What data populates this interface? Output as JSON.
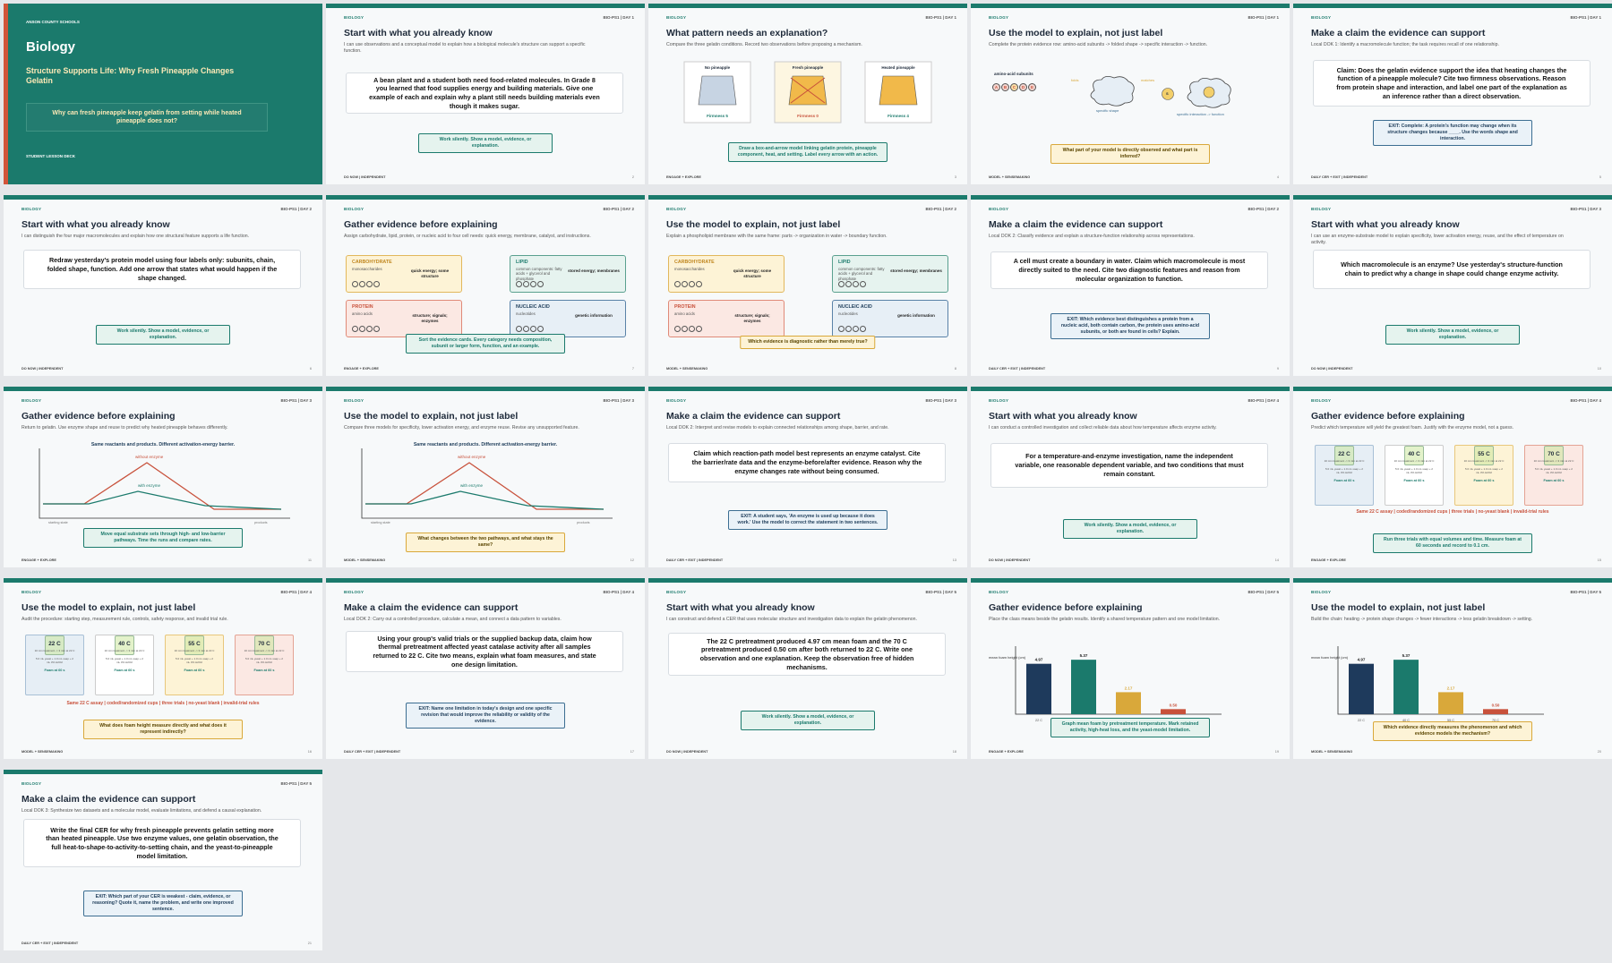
{
  "cover": {
    "school": "ANSON COUNTY SCHOOLS",
    "subject": "Biology",
    "unit": "Structure Supports Life: Why Fresh Pineapple Changes Gelatin",
    "question": "Why can fresh pineapple keep gelatin from setting while heated pineapple does not?",
    "deck": "STUDENT LESSON DECK"
  },
  "subject_label": "BIOLOGY",
  "slides": [
    {
      "code": "BIO-PS1 | DAY 1",
      "title": "Start with what you already know",
      "sub": "I can use observations and a conceptual model to explain how a biological molecule's structure can support a specific function.",
      "card": "A bean plant and a student both need food-related molecules. In Grade 8 you learned that food supplies energy and building materials. Give one example of each and explain why a plant still needs building materials even though it makes sugar.",
      "pill": "Work silently. Show a model, evidence, or explanation.",
      "foot": "DO NOW | INDEPENDENT",
      "pg": "2",
      "num": "Slide 2"
    },
    {
      "code": "BIO-PS1 | DAY 1",
      "title": "What pattern needs an explanation?",
      "sub": "Compare the three gelatin conditions. Record two observations before proposing a mechanism.",
      "pill": "Draw a box-and-arrow model linking gelatin protein, pineapple component, heat, and setting. Label every arrow with an action.",
      "foot": "ENGAGE + EXPLORE",
      "pg": "3",
      "num": "Slide 3",
      "jars": [
        {
          "label": "No pineapple",
          "firm": "Firmness 5"
        },
        {
          "label": "Fresh pineapple",
          "firm": "Firmness 0"
        },
        {
          "label": "Heated pineapple",
          "firm": "Firmness 4"
        }
      ]
    },
    {
      "code": "BIO-PS1 | DAY 1",
      "title": "Use the model to explain, not just label",
      "sub": "Complete the protein evidence row: amino-acid subunits -> folded shape -> specific interaction -> function.",
      "pill": "What part of your model is directly observed and what part is inferred?",
      "foot": "MODEL + SENSEMAKING",
      "pg": "4",
      "num": "Slide 4",
      "chain": {
        "subunits": "amino-acid subunits",
        "beads": [
          "A",
          "B",
          "C",
          "D",
          "E"
        ],
        "folds": "folds",
        "shape": "specific shape",
        "matches": "matches",
        "s": "S",
        "interaction": "specific interaction -> function"
      }
    },
    {
      "code": "BIO-PS1 | DAY 1",
      "title": "Make a claim the evidence can support",
      "sub": "Local DOK 1: Identify a macromolecule function; the task requires recall of one relationship.",
      "card": "Claim: Does the gelatin evidence support the idea that heating changes the function of a pineapple molecule? Cite two firmness observations. Reason from protein shape and interaction, and label one part of the explanation as an inference rather than a direct observation.",
      "pill": "EXIT: Complete: A protein's function may change when its structure changes because ____. Use the words shape and interaction.",
      "foot": "DAILY CER + EXIT | INDEPENDENT",
      "pg": "5",
      "num": "Slide 5"
    },
    {
      "code": "BIO-PS1 | DAY 2",
      "title": "Start with what you already know",
      "sub": "I can distinguish the four major macromolecules and explain how one structural feature supports a life function.",
      "card": "Redraw yesterday's protein model using four labels only: subunits, chain, folded shape, function. Add one arrow that states what would happen if the shape changed.",
      "pill": "Work silently. Show a model, evidence, or explanation.",
      "foot": "DO NOW | INDEPENDENT",
      "pg": "6",
      "num": "Slide 6"
    },
    {
      "code": "BIO-PS1 | DAY 2",
      "title": "Gather evidence before explaining",
      "sub": "Assign carbohydrate, lipid, protein, or nucleic acid to four cell needs: quick energy, membrane, catalyst, and instructions.",
      "pill": "Sort the evidence cards. Every category needs composition, subunit or larger form, function, and an example.",
      "foot": "ENGAGE + EXPLORE",
      "pg": "7",
      "num": "Slide 7"
    },
    {
      "code": "BIO-PS1 | DAY 2",
      "title": "Use the model to explain, not just label",
      "sub": "Explain a phospholipid membrane with the same frame: parts -> organization in water -> boundary function.",
      "pill": "Which evidence is diagnostic rather than merely true?",
      "foot": "MODEL + SENSEMAKING",
      "pg": "8",
      "num": "Slide 8"
    },
    {
      "code": "BIO-PS1 | DAY 2",
      "title": "Make a claim the evidence can support",
      "sub": "Local DOK 2: Classify evidence and explain a structure-function relationship across representations.",
      "card": "A cell must create a boundary in water. Claim which macromolecule is most directly suited to the need. Cite two diagnostic features and reason from molecular organization to function.",
      "pill": "EXIT: Which evidence best distinguishes a protein from a nucleic acid, both contain carbon, the protein uses amino-acid subunits, or both are found in cells? Explain.",
      "foot": "DAILY CER + EXIT | INDEPENDENT",
      "pg": "9",
      "num": "Slide 9"
    },
    {
      "code": "BIO-PS1 | DAY 3",
      "title": "Start with what you already know",
      "sub": "I can use an enzyme-substrate model to explain specificity, lower activation energy, reuse, and the effect of temperature on activity.",
      "card": "Which macromolecule is an enzyme? Use yesterday's structure-function chain to predict why a change in shape could change enzyme activity.",
      "pill": "Work silently. Show a model, evidence, or explanation.",
      "foot": "DO NOW | INDEPENDENT",
      "pg": "10",
      "num": "Slide 10"
    },
    {
      "code": "BIO-PS1 | DAY 3",
      "title": "Gather evidence before explaining",
      "sub": "Return to gelatin. Use enzyme shape and reuse to predict why heated pineapple behaves differently.",
      "pill": "Move equal substrate sets through high- and low-barrier pathways. Time the runs and compare rates.",
      "foot": "ENGAGE + EXPLORE",
      "pg": "11",
      "num": "Slide 11"
    },
    {
      "code": "BIO-PS1 | DAY 3",
      "title": "Use the model to explain, not just label",
      "sub": "Compare three models for specificity, lower activation energy, and enzyme reuse. Revise any unsupported feature.",
      "pill": "What changes between the two pathways, and what stays the same?",
      "foot": "MODEL + SENSEMAKING",
      "pg": "12",
      "num": "Slide 12"
    },
    {
      "code": "BIO-PS1 | DAY 3",
      "title": "Make a claim the evidence can support",
      "sub": "Local DOK 2: Interpret and revise models to explain connected relationships among shape, barrier, and rate.",
      "card": "Claim which reaction-path model best represents an enzyme catalyst. Cite the barrier/rate data and the enzyme-before/after evidence. Reason why the enzyme changes rate without being consumed.",
      "pill": "EXIT: A student says, 'An enzyme is used up because it does work.' Use the model to correct the statement in two sentences.",
      "foot": "DAILY CER + EXIT | INDEPENDENT",
      "pg": "13",
      "num": "Slide 13"
    },
    {
      "code": "BIO-PS1 | DAY 4",
      "title": "Start with what you already know",
      "sub": "I can conduct a controlled investigation and collect reliable data about how temperature affects enzyme activity.",
      "card": "For a temperature-and-enzyme investigation, name the independent variable, one reasonable dependent variable, and two conditions that must remain constant.",
      "pill": "Work silently. Show a model, evidence, or explanation.",
      "foot": "DO NOW | INDEPENDENT",
      "pg": "14",
      "num": "Slide 14"
    },
    {
      "code": "BIO-PS1 | DAY 4",
      "title": "Gather evidence before explaining",
      "sub": "Predict which temperature will yield the greatest foam. Justify with the enzyme model, not a guess.",
      "red": "Same 22 C assay | coded/randomized cups | three trials | no-yeast blank | invalid-trial rules",
      "pill": "Run three trials with equal volumes and time. Measure foam at 60 seconds and record to 0.1 cm.",
      "foot": "ENGAGE + EXPLORE",
      "pg": "15",
      "num": "Slide 15"
    },
    {
      "code": "BIO-PS1 | DAY 4",
      "title": "Use the model to explain, not just label",
      "sub": "Audit the procedure: starting step, measurement rule, controls, safety response, and invalid trial rule.",
      "red": "Same 22 C assay | coded/randomized cups | three trials | no-yeast blank | invalid-trial rules",
      "pill": "What does foam height measure directly and what does it represent indirectly?",
      "foot": "MODEL + SENSEMAKING",
      "pg": "16",
      "num": "Slide 16"
    },
    {
      "code": "BIO-PS1 | DAY 4",
      "title": "Make a claim the evidence can support",
      "sub": "Local DOK 2: Carry out a controlled procedure, calculate a mean, and connect a data pattern to variables.",
      "card": "Using your group's valid trials or the supplied backup data, claim how thermal pretreatment affected yeast catalase activity after all samples returned to 22 C. Cite two means, explain what foam measures, and state one design limitation.",
      "pill": "EXIT: Name one limitation in today's design and one specific revision that would improve the reliability or validity of the evidence.",
      "foot": "DAILY CER + EXIT | INDEPENDENT",
      "pg": "17",
      "num": "Slide 17"
    },
    {
      "code": "BIO-PS1 | DAY 5",
      "title": "Start with what you already know",
      "sub": "I can construct and defend a CER that uses molecular structure and investigation data to explain the gelatin phenomenon.",
      "card": "The 22 C pretreatment produced 4.97 cm mean foam and the 70 C pretreatment produced 0.50 cm after both returned to 22 C. Write one observation and one explanation. Keep the observation free of hidden mechanisms.",
      "pill": "Work silently. Show a model, evidence, or explanation.",
      "foot": "DO NOW | INDEPENDENT",
      "pg": "18",
      "num": "Slide 18"
    },
    {
      "code": "BIO-PS1 | DAY 5",
      "title": "Gather evidence before explaining",
      "sub": "Place the class means beside the gelatin results. Identify a shared temperature pattern and one model limitation.",
      "pill": "Graph mean foam by pretreatment temperature. Mark retained activity, high-heat loss, and the yeast-model limitation.",
      "foot": "ENGAGE + EXPLORE",
      "pg": "19",
      "num": "Slide 19"
    },
    {
      "code": "BIO-PS1 | DAY 5",
      "title": "Use the model to explain, not just label",
      "sub": "Build the chain: heating -> protein shape changes -> fewer interactions -> less gelatin breakdown -> setting.",
      "pill": "Which evidence directly measures the phenomenon and which evidence models the mechanism?",
      "foot": "MODEL + SENSEMAKING",
      "pg": "20",
      "num": "Slide 20"
    },
    {
      "code": "BIO-PS1 | DAY 5",
      "title": "Make a claim the evidence can support",
      "sub": "Local DOK 3: Synthesize two datasets and a molecular model, evaluate limitations, and defend a causal explanation.",
      "card": "Write the final CER for why fresh pineapple prevents gelatin setting more than heated pineapple. Use two enzyme values, one gelatin observation, the full heat-to-shape-to-activity-to-setting chain, and the yeast-to-pineapple model limitation.",
      "pill": "EXIT: Which part of your CER is weakest - claim, evidence, or reasoning? Quote it, name the problem, and write one improved sentence.",
      "foot": "DAILY CER + EXIT | INDEPENDENT",
      "pg": "21",
      "num": "Slide 21"
    }
  ],
  "macromolecules": [
    {
      "name": "CARBOHYDRATE",
      "sub": "monosaccharides",
      "fn": "quick energy; some structure"
    },
    {
      "name": "LIPID",
      "sub": "common components: fatty acids + glycerol and phosphate",
      "fn": "stored energy; membranes"
    },
    {
      "name": "PROTEIN",
      "sub": "amino acids",
      "fn": "structure; signals; enzymes"
    },
    {
      "name": "NUCLEIC ACID",
      "sub": "nucleotides",
      "fn": "genetic information"
    }
  ],
  "energy": {
    "headline": "Same reactants and products. Different activation-energy barrier.",
    "without": "without enzyme",
    "with": "with enzyme",
    "start": "starting state",
    "end": "products"
  },
  "temps": [
    {
      "t": "22 C",
      "lines": "10 min treatment -> 3 min at 22 C",
      "assay": "5.0 mL yeast + 1.0 mL soap + 2 mL 3% H2O2",
      "foam": "Foam at 60 s"
    },
    {
      "t": "40 C",
      "lines": "10 min treatment -> 3 min at 22 C",
      "assay": "5.0 mL yeast + 1.0 mL soap + 2 mL 3% H2O2",
      "foam": "Foam at 60 s"
    },
    {
      "t": "55 C",
      "lines": "10 min treatment -> 3 min at 22 C",
      "assay": "5.0 mL yeast + 1.0 mL soap + 2 mL 3% H2O2",
      "foam": "Foam at 60 s"
    },
    {
      "t": "70 C",
      "lines": "10 min treatment -> 3 min at 22 C",
      "assay": "5.0 mL yeast + 1.0 mL soap + 2 mL 3% H2O2",
      "foam": "Foam at 60 s"
    }
  ],
  "colors": {
    "teal": "#1b7a6c",
    "navy": "#1e3a5c",
    "gold": "#d9a83a",
    "red": "#c8513b"
  },
  "chart_data": {
    "type": "bar",
    "categories": [
      "22 C",
      "40 C",
      "55 C",
      "70 C"
    ],
    "values": [
      4.97,
      5.37,
      2.17,
      0.5
    ],
    "labels": [
      "4.97",
      "5.37",
      "2.17",
      "0.50"
    ],
    "ylabel": "mean foam height (cm)",
    "ylim": [
      0,
      6
    ],
    "colors": [
      "#1e3a5c",
      "#1b7a6c",
      "#d9a83a",
      "#c8513b"
    ]
  }
}
